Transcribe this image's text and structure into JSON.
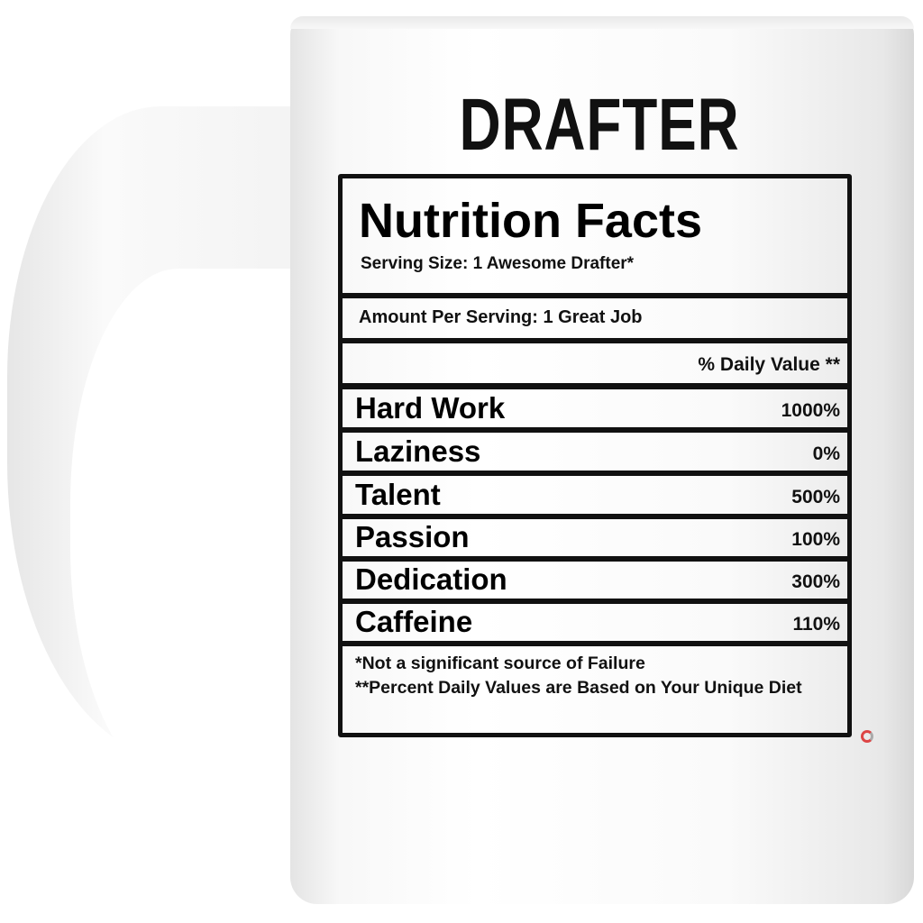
{
  "title": "DRAFTER",
  "label": {
    "heading": "Nutrition Facts",
    "serving_size": "Serving Size: 1 Awesome Drafter*",
    "amount_per_serving": "Amount Per Serving: 1 Great Job",
    "daily_value_header": "% Daily Value **",
    "nutrients": [
      {
        "name": "Hard Work",
        "value": "1000%"
      },
      {
        "name": "Laziness",
        "value": "0%"
      },
      {
        "name": "Talent",
        "value": "500%"
      },
      {
        "name": "Passion",
        "value": "100%"
      },
      {
        "name": "Dedication",
        "value": "300%"
      },
      {
        "name": "Caffeine",
        "value": "110%"
      }
    ],
    "footnote_1": "*Not a significant source of Failure",
    "footnote_2": "**Percent Daily Values are Based on Your Unique Diet"
  },
  "colors": {
    "mug": "#ffffff",
    "ink": "#111111",
    "logo": "#dd4444"
  }
}
